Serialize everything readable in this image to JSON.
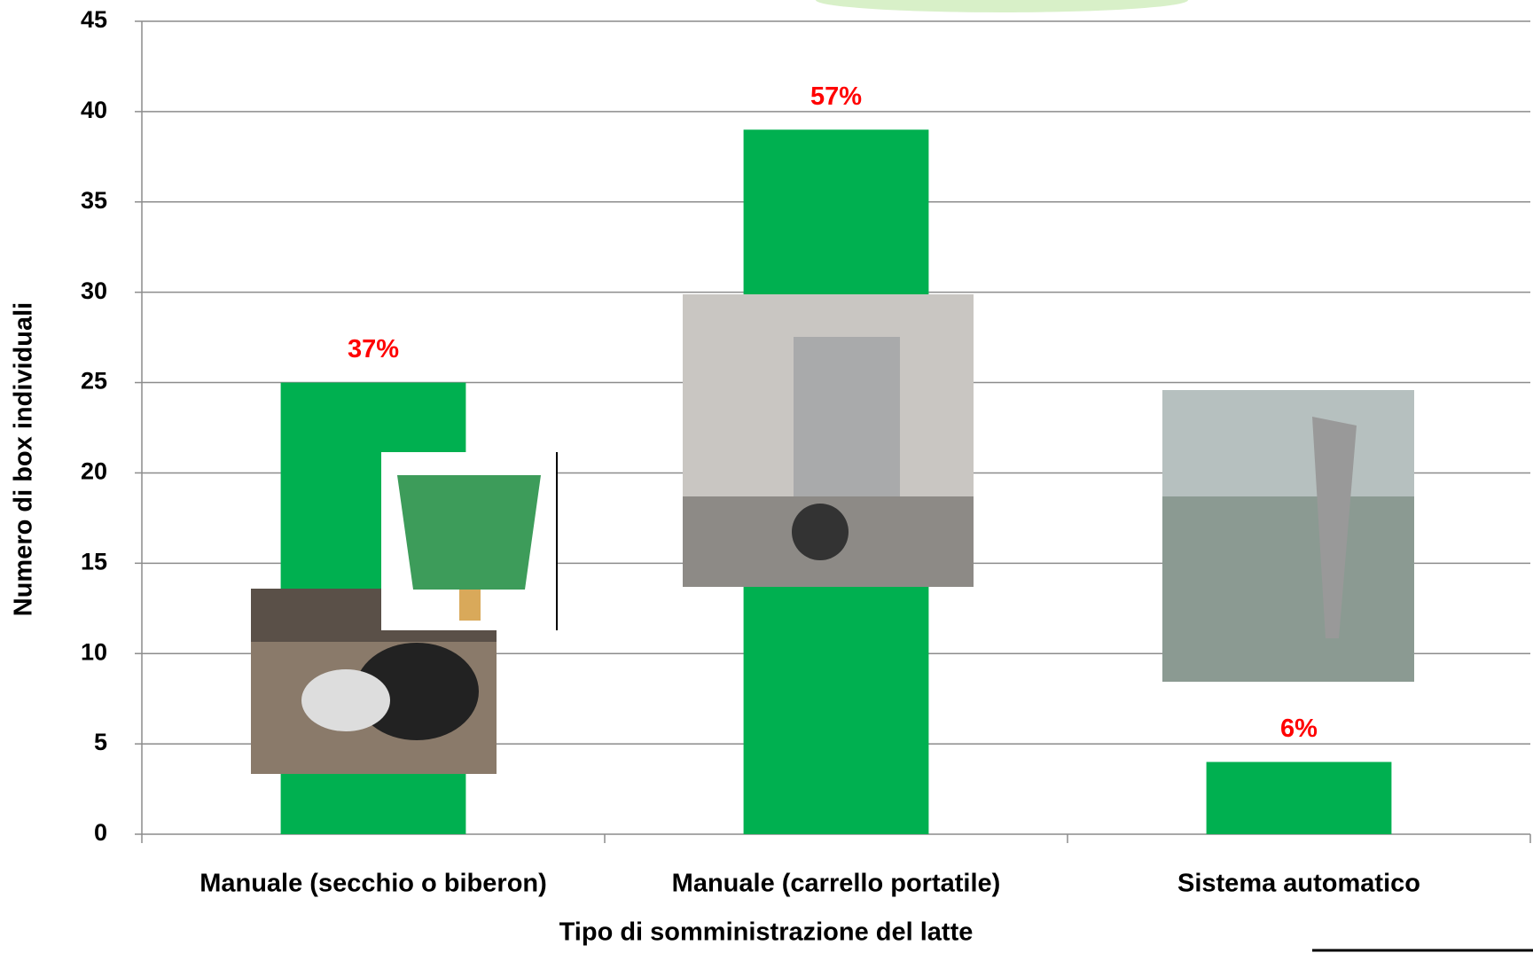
{
  "chart_data": {
    "type": "bar",
    "xlabel": "Tipo di somministrazione del latte",
    "ylabel": "Numero di box individuali",
    "categories": [
      "Manuale (secchio o biberon)",
      "Manuale (carrello portatile)",
      "Sistema automatico"
    ],
    "values": [
      25,
      39,
      4
    ],
    "annotations": [
      "37%",
      "57%",
      "6%"
    ],
    "color": "#00b050",
    "annotation_color": "#ff0000",
    "ylim": [
      0,
      45
    ],
    "yticks": [
      0,
      5,
      10,
      15,
      20,
      25,
      30,
      35,
      40,
      45
    ],
    "grid": true
  }
}
